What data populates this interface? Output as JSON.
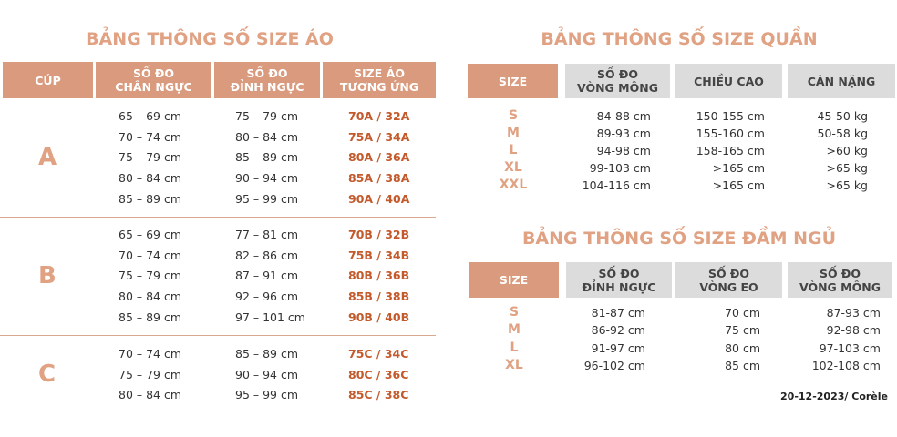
{
  "bra": {
    "title": "BẢNG THÔNG SỐ SIZE ÁO",
    "headers": [
      "CÚP",
      "SỐ ĐO\nCHÂN NGỰC",
      "SỐ ĐO\nĐỈNH NGỰC",
      "SIZE ÁO\nTƯƠNG ỨNG"
    ],
    "groups": [
      {
        "cup": "A",
        "rows": [
          [
            "65 – 69 cm",
            "75 – 79 cm",
            "70A / 32A"
          ],
          [
            "70 – 74 cm",
            "80 – 84 cm",
            "75A / 34A"
          ],
          [
            "75 – 79 cm",
            "85 – 89 cm",
            "80A / 36A"
          ],
          [
            "80 – 84 cm",
            "90 – 94 cm",
            "85A / 38A"
          ],
          [
            "85 – 89 cm",
            "95 – 99 cm",
            "90A / 40A"
          ]
        ]
      },
      {
        "cup": "B",
        "rows": [
          [
            "65 – 69 cm",
            "77 – 81 cm",
            "70B / 32B"
          ],
          [
            "70 – 74 cm",
            "82 – 86 cm",
            "75B / 34B"
          ],
          [
            "75 – 79 cm",
            "87 – 91 cm",
            "80B / 36B"
          ],
          [
            "80 – 84 cm",
            "92 – 96 cm",
            "85B / 38B"
          ],
          [
            "85 – 89 cm",
            "97 – 101 cm",
            "90B / 40B"
          ]
        ]
      },
      {
        "cup": "C",
        "rows": [
          [
            "70 – 74 cm",
            "85 – 89 cm",
            "75C / 34C"
          ],
          [
            "75 – 79 cm",
            "90 – 94 cm",
            "80C / 36C"
          ],
          [
            "80 – 84 cm",
            "95 – 99 cm",
            "85C / 38C"
          ]
        ]
      }
    ]
  },
  "pants": {
    "title": "BẢNG THÔNG SỐ SIZE QUẦN",
    "headers": [
      "SIZE",
      "SỐ ĐO\nVÒNG MÔNG",
      "CHIỀU CAO",
      "CÂN NẶNG"
    ],
    "rows": [
      [
        "S",
        "84-88 cm",
        "150-155 cm",
        "45-50 kg"
      ],
      [
        "M",
        "89-93 cm",
        "155-160 cm",
        "50-58 kg"
      ],
      [
        "L",
        "94-98 cm",
        "158-165 cm",
        ">60 kg"
      ],
      [
        "XL",
        "99-103 cm",
        ">165 cm",
        ">65 kg"
      ],
      [
        "XXL",
        "104-116 cm",
        ">165 cm",
        ">65 kg"
      ]
    ]
  },
  "dress": {
    "title": "BẢNG THÔNG SỐ SIZE ĐẦM NGỦ",
    "headers": [
      "SIZE",
      "SỐ ĐO\nĐỈNH NGỰC",
      "SỐ ĐO\nVÒNG EO",
      "SỐ ĐO\nVÒNG MÔNG"
    ],
    "rows": [
      [
        "S",
        "81-87 cm",
        "70 cm",
        "87-93 cm"
      ],
      [
        "M",
        "86-92 cm",
        "75 cm",
        "92-98 cm"
      ],
      [
        "L",
        "91-97 cm",
        "80 cm",
        "97-103 cm"
      ],
      [
        "XL",
        "96-102 cm",
        "85 cm",
        "102-108 cm"
      ]
    ]
  },
  "footer": "20-12-2023/ Corèle",
  "colors": {
    "accent": "#d99a7d",
    "title": "#e0a283",
    "size_text": "#c45a2c",
    "gray_header": "#dcdcdc"
  }
}
